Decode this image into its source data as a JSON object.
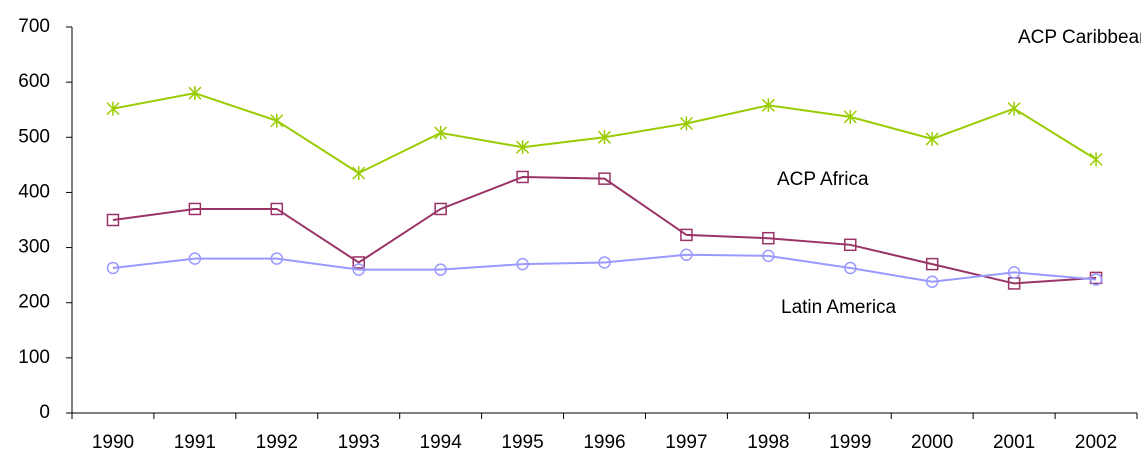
{
  "chart_data": {
    "type": "line",
    "categories": [
      "1990",
      "1991",
      "1992",
      "1993",
      "1994",
      "1995",
      "1996",
      "1997",
      "1998",
      "1999",
      "2000",
      "2001",
      "2002"
    ],
    "series": [
      {
        "name": "ACP Caribbean",
        "color": "#99cc00",
        "marker": "asterisk",
        "values": [
          552,
          580,
          530,
          435,
          508,
          482,
          500,
          525,
          558,
          537,
          497,
          552,
          460
        ]
      },
      {
        "name": "ACP Africa",
        "color": "#993366",
        "marker": "square",
        "values": [
          350,
          370,
          370,
          273,
          370,
          428,
          425,
          323,
          317,
          305,
          270,
          235,
          245
        ]
      },
      {
        "name": "Latin America",
        "color": "#9999ff",
        "marker": "circle",
        "values": [
          263,
          280,
          280,
          260,
          260,
          270,
          273,
          287,
          285,
          263,
          238,
          255,
          242
        ]
      }
    ],
    "ylim": [
      0,
      700
    ],
    "yticks": [
      0,
      100,
      200,
      300,
      400,
      500,
      600,
      700
    ],
    "grid": false
  }
}
